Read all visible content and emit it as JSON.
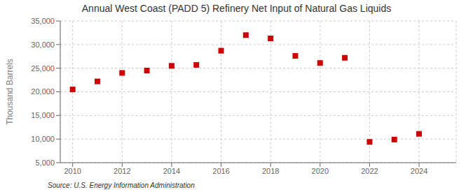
{
  "chart_data": {
    "type": "scatter",
    "title": "Annual West Coast (PADD 5) Refinery Net Input of Natural Gas Liquids",
    "y_label": "Thousand Barrels",
    "annotations": [
      "Source: U.S. Energy Information Administration"
    ],
    "x": [
      2010,
      2011,
      2012,
      2013,
      2014,
      2015,
      2016,
      2017,
      2018,
      2019,
      2020,
      2021,
      2022,
      2023,
      2024
    ],
    "values": [
      20500,
      22200,
      24000,
      24500,
      25500,
      25700,
      28700,
      32000,
      31300,
      27600,
      26100,
      27200,
      9400,
      9900,
      11100
    ],
    "color": "#CC0000",
    "marker": "square",
    "xlim": [
      2009.5,
      2025.5
    ],
    "xticks": [
      2010,
      2012,
      2014,
      2016,
      2018,
      2020,
      2022,
      2024
    ],
    "ylim": [
      5000,
      35000
    ],
    "yticks": [
      {
        "value": 5000,
        "label": "5,000"
      },
      {
        "value": 10000,
        "label": "10,000"
      },
      {
        "value": 15000,
        "label": "15,000"
      },
      {
        "value": 20000,
        "label": "20,000"
      },
      {
        "value": 25000,
        "label": "25,000"
      },
      {
        "value": 30000,
        "label": "30,000"
      },
      {
        "value": 35000,
        "label": "35,000"
      }
    ],
    "grid": true
  }
}
